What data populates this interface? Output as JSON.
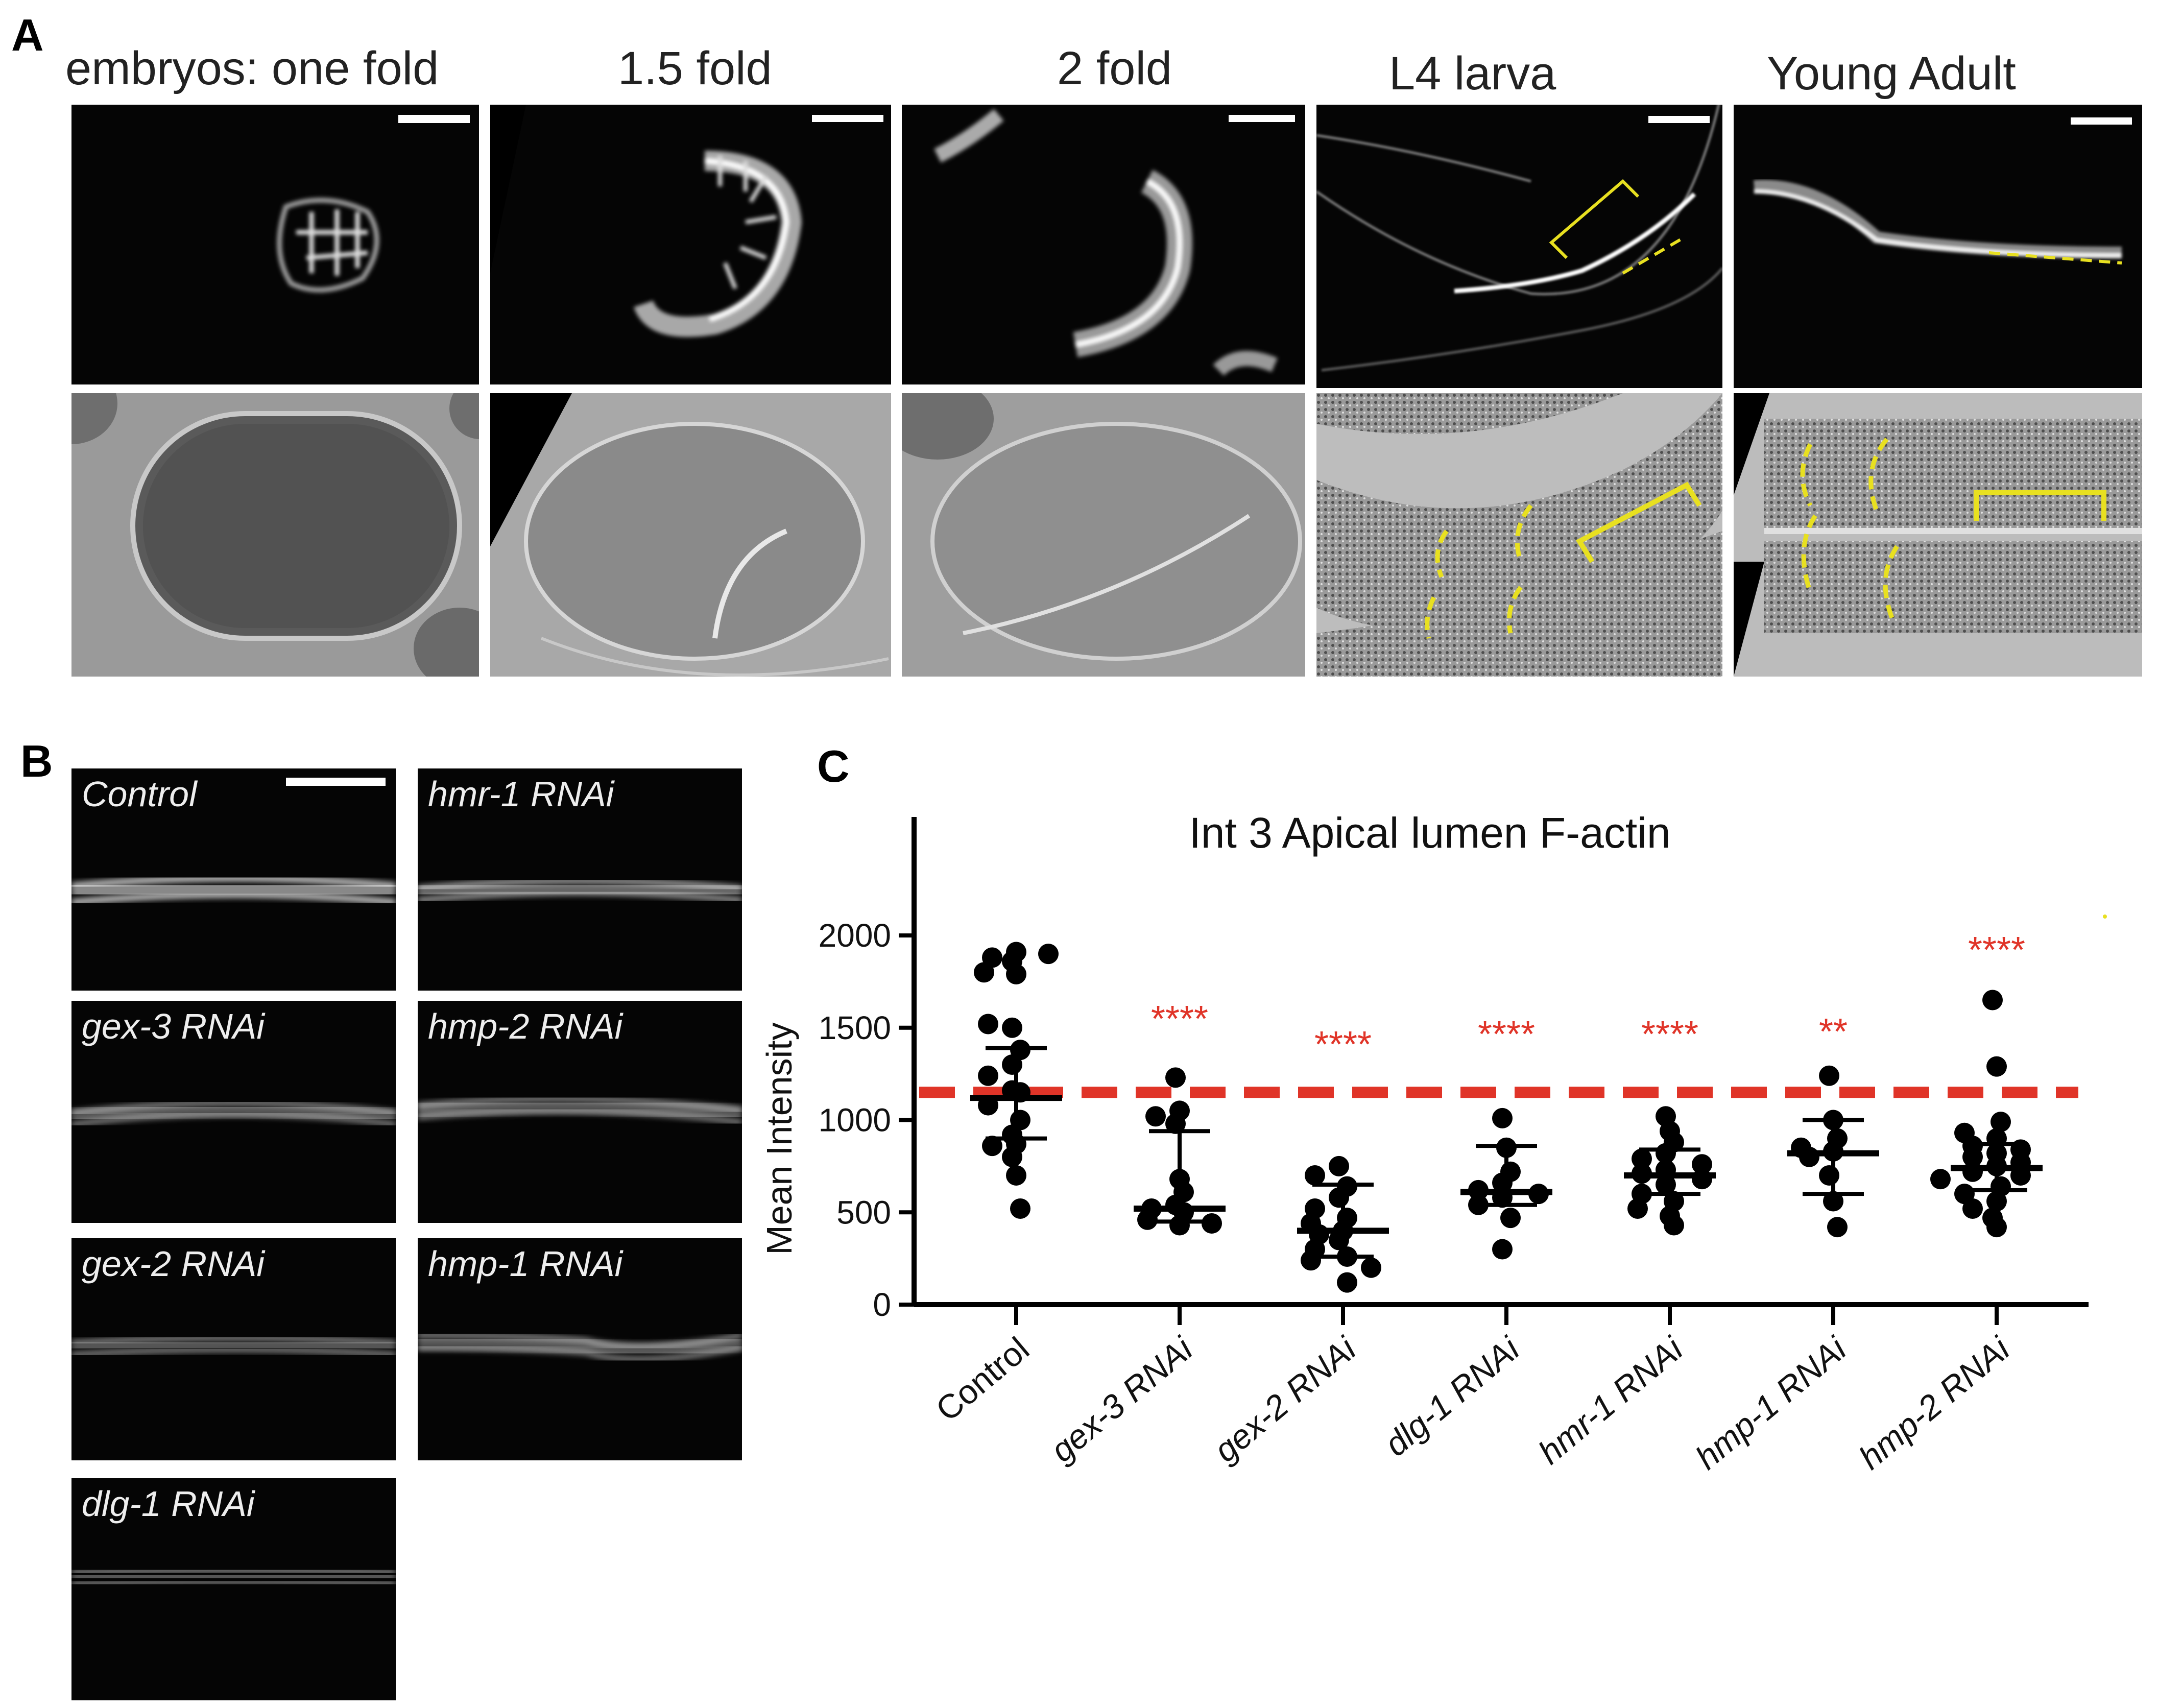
{
  "panel_a": {
    "letter": "A",
    "stages": [
      "embryos:  one fold",
      "1.5 fold",
      "2 fold",
      "L4 larva",
      "Young Adult"
    ]
  },
  "panel_b": {
    "letter": "B",
    "labels": [
      "Control",
      "hmr-1 RNAi",
      "gex-3 RNAi",
      "hmp-2 RNAi",
      "gex-2 RNAi",
      "hmp-1 RNAi",
      "dlg-1 RNAi"
    ]
  },
  "panel_c": {
    "letter": "C"
  },
  "chart_data": {
    "type": "scatter",
    "title": "Int 3 Apical lumen F-actin",
    "xlabel": "",
    "ylabel": "Mean Intensity",
    "ylim": [
      0,
      2000
    ],
    "yticks": [
      "0",
      "500",
      "1000",
      "1500",
      "2000"
    ],
    "categories": [
      "Control",
      "gex-3 RNAi",
      "gex-2 RNAi",
      "dlg-1 RNAi",
      "hmr-1 RNAi",
      "hmp-1 RNAi",
      "hmp-2 RNAi"
    ],
    "reference_line": 1150,
    "significance": [
      "",
      "****",
      "****",
      "****",
      "****",
      "**",
      "****"
    ],
    "median": [
      1120,
      520,
      400,
      610,
      700,
      820,
      740
    ],
    "q1": [
      900,
      450,
      260,
      540,
      600,
      600,
      620
    ],
    "q3": [
      1390,
      940,
      650,
      860,
      840,
      1000,
      870
    ],
    "points": [
      [
        1860,
        1910,
        1880,
        1800,
        1790,
        1900,
        1500,
        1520,
        1380,
        1300,
        1240,
        1150,
        1160,
        1080,
        1000,
        920,
        870,
        860,
        800,
        700,
        520
      ],
      [
        1230,
        1050,
        1020,
        980,
        680,
        610,
        540,
        520,
        500,
        460,
        430,
        440
      ],
      [
        750,
        700,
        640,
        580,
        520,
        470,
        440,
        400,
        380,
        350,
        300,
        260,
        240,
        200,
        120
      ],
      [
        1010,
        850,
        720,
        660,
        620,
        600,
        580,
        540,
        470,
        300
      ],
      [
        1020,
        940,
        880,
        820,
        790,
        760,
        730,
        710,
        680,
        650,
        600,
        560,
        520,
        480,
        430
      ],
      [
        1240,
        1000,
        900,
        850,
        830,
        800,
        700,
        560,
        420
      ],
      [
        1650,
        1290,
        990,
        930,
        900,
        860,
        840,
        820,
        800,
        770,
        750,
        720,
        700,
        680,
        640,
        600,
        560,
        520,
        470,
        420
      ]
    ]
  },
  "colors": {
    "significance": "#e03428",
    "reference_line": "#e03428",
    "annotation": "#e8e020",
    "points": "#000000"
  }
}
